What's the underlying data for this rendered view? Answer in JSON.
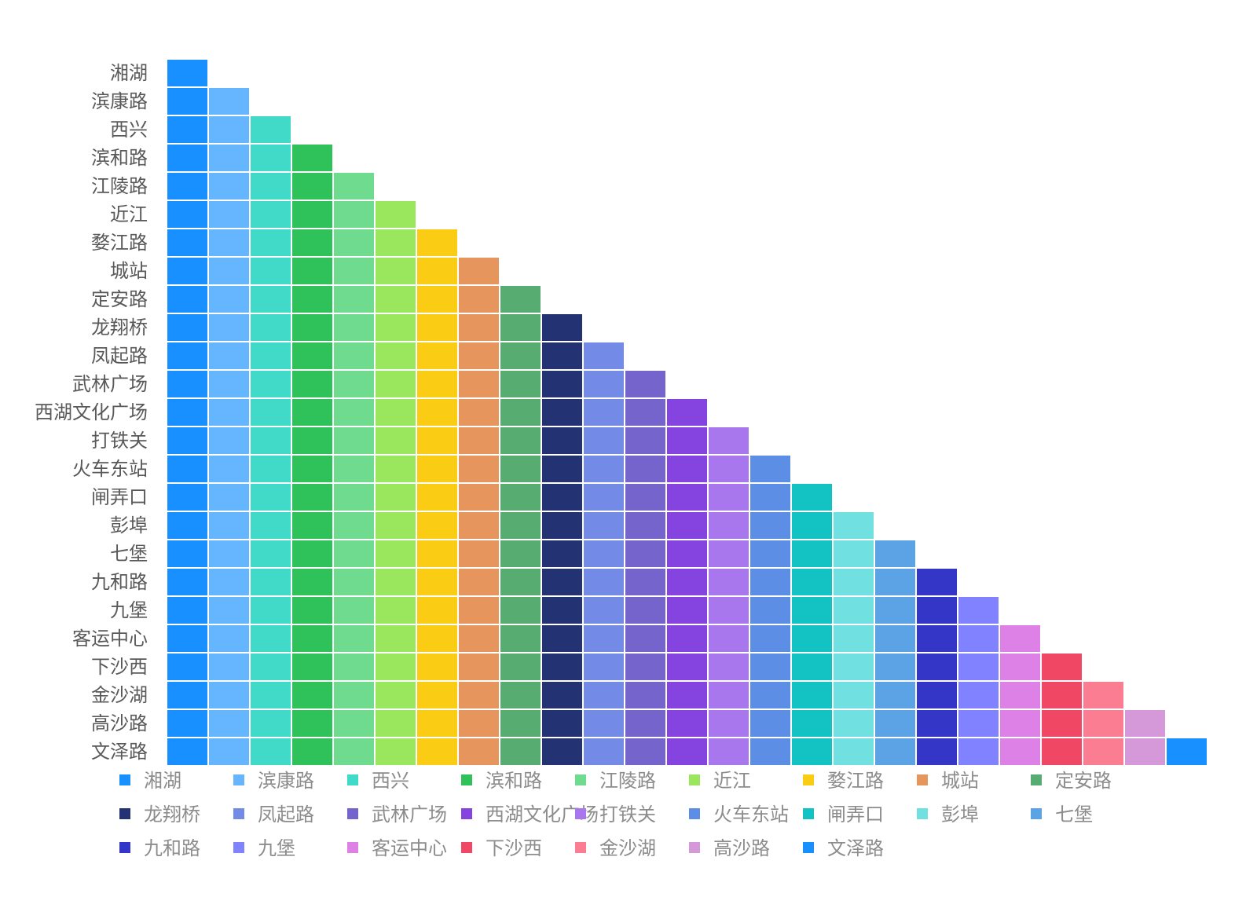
{
  "chart_data": {
    "type": "heatmap",
    "stations": [
      "湘湖",
      "滨康路",
      "西兴",
      "滨和路",
      "江陵路",
      "近江",
      "婺江路",
      "城站",
      "定安路",
      "龙翔桥",
      "凤起路",
      "武林广场",
      "西湖文化广场",
      "打铁关",
      "火车东站",
      "闸弄口",
      "彭埠",
      "七堡",
      "九和路",
      "九堡",
      "客运中心",
      "下沙西",
      "金沙湖",
      "高沙路",
      "文泽路"
    ],
    "colors": [
      "#1890ff",
      "#66b5ff",
      "#41d9c7",
      "#2fc25b",
      "#6edb8f",
      "#9ae65c",
      "#facc14",
      "#e6965c",
      "#57ad71",
      "#223273",
      "#738ae6",
      "#7564cc",
      "#8543e0",
      "#a877ed",
      "#5c8ee6",
      "#13c2c2",
      "#70e0e0",
      "#5ca3e6",
      "#3436c7",
      "#8082ff",
      "#dd81e6",
      "#f04864",
      "#fa7d92",
      "#d598d9",
      "#1890ff"
    ],
    "structure": "lower-triangle",
    "legend_position": "bottom",
    "legend_columns": 9
  }
}
